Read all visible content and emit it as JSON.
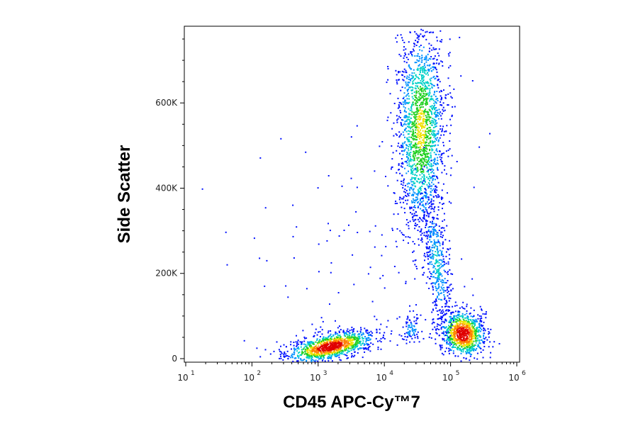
{
  "chart_data": {
    "type": "scatter",
    "title": "",
    "xlabel": "CD45 APC-Cy™7",
    "ylabel": "Side Scatter",
    "x_scale": "log",
    "xlim": [
      10,
      1000000
    ],
    "ylim": [
      0,
      780000
    ],
    "x_ticks": [
      {
        "value": 10,
        "base": "10",
        "exp": "1"
      },
      {
        "value": 100,
        "base": "10",
        "exp": "2"
      },
      {
        "value": 1000,
        "base": "10",
        "exp": "3"
      },
      {
        "value": 10000,
        "base": "10",
        "exp": "4"
      },
      {
        "value": 100000,
        "base": "10",
        "exp": "5"
      },
      {
        "value": 1000000,
        "base": "10",
        "exp": "6"
      }
    ],
    "y_ticks": [
      {
        "value": 0,
        "label": "0"
      },
      {
        "value": 200000,
        "label": "200K"
      },
      {
        "value": 400000,
        "label": "400K"
      },
      {
        "value": 600000,
        "label": "600K"
      }
    ],
    "grid": false,
    "colormap": "density: blue-cyan-green-yellow-red",
    "populations": [
      {
        "center_x": 1500,
        "center_y": 30000,
        "density": "high"
      },
      {
        "center_x": 150000,
        "center_y": 60000,
        "density": "high"
      },
      {
        "center_x": 35000,
        "center_y": 550000,
        "density": "medium"
      },
      {
        "center_x": 60000,
        "center_y": 220000,
        "density": "low"
      },
      {
        "center_x": 25000,
        "center_y": 70000,
        "density": "low"
      }
    ]
  }
}
